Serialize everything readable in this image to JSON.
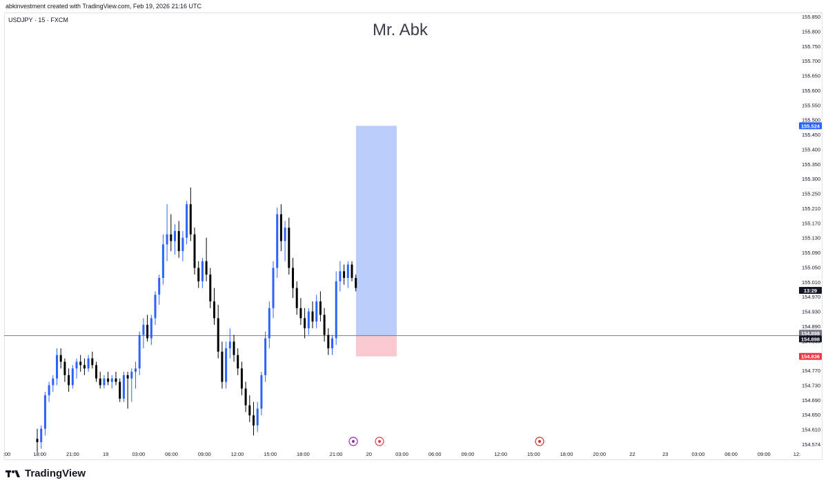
{
  "header": {
    "credit": "abkinvestment created with TradingView.com, Feb 19, 2026 21:16 UTC"
  },
  "symbol_line": "USDJPY · 15 · FXCM",
  "watermark": "Mr. Abk",
  "footer": {
    "brand": "TradingView"
  },
  "colors": {
    "up": "#2962ff",
    "down": "#000000",
    "target_zone": "#bbcdfb",
    "stop_zone": "#f9c9cf",
    "price_line": "#787b86",
    "badge_blue": "#2962ff",
    "badge_red": "#f23645",
    "badge_black": "#131722"
  },
  "chart_data": {
    "type": "candlestick",
    "ylim": [
      154.574,
      155.85
    ],
    "y_ticks": [
      "155.850",
      "155.800",
      "155.750",
      "155.700",
      "155.650",
      "155.600",
      "155.550",
      "155.500",
      "155.450",
      "155.400",
      "155.350",
      "155.300",
      "155.250",
      "155.210",
      "155.170",
      "155.130",
      "155.090",
      "155.050",
      "155.010",
      "154.970",
      "154.930",
      "154.890",
      "154.850",
      "154.810",
      "154.770",
      "154.730",
      "154.690",
      "154.650",
      "154.610",
      "154.574"
    ],
    "x_ticks": [
      ":00",
      "18:00",
      "21:00",
      "19",
      "03:00",
      "06:00",
      "09:00",
      "12:00",
      "15:00",
      "18:00",
      "21:00",
      "20",
      "03:00",
      "06:00",
      "09:00",
      "12:00",
      "15:00",
      "18:00",
      "20:00",
      "22",
      "23",
      "03:00",
      "06:00",
      "09:00",
      "12:"
    ],
    "price_badges": [
      {
        "label": "155.524",
        "value": 155.524,
        "color": "badge_blue"
      },
      {
        "label": "13:29",
        "value": 155.033,
        "color": "badge_black"
      },
      {
        "label": "154.898",
        "value": 154.905,
        "color": "price_line"
      },
      {
        "label": "154.898",
        "value": 154.888,
        "color": "badge_black"
      },
      {
        "label": "154.836",
        "value": 154.836,
        "color": "badge_red"
      }
    ],
    "current_price": 154.898,
    "position": {
      "type": "long",
      "entry": 154.898,
      "target": 155.524,
      "stop": 154.836
    },
    "candles": [
      [
        154.59,
        154.62,
        154.55,
        154.58
      ],
      [
        154.58,
        154.63,
        154.56,
        154.62
      ],
      [
        154.62,
        154.73,
        154.6,
        154.72
      ],
      [
        154.72,
        154.76,
        154.7,
        154.75
      ],
      [
        154.75,
        154.78,
        154.73,
        154.77
      ],
      [
        154.77,
        154.86,
        154.75,
        154.84
      ],
      [
        154.84,
        154.86,
        154.8,
        154.82
      ],
      [
        154.82,
        154.83,
        154.76,
        154.78
      ],
      [
        154.78,
        154.8,
        154.73,
        154.75
      ],
      [
        154.75,
        154.81,
        154.74,
        154.8
      ],
      [
        154.8,
        154.83,
        154.77,
        154.82
      ],
      [
        154.82,
        154.84,
        154.79,
        154.81
      ],
      [
        154.81,
        154.83,
        154.78,
        154.8
      ],
      [
        154.8,
        154.84,
        154.79,
        154.83
      ],
      [
        154.83,
        154.85,
        154.8,
        154.81
      ],
      [
        154.81,
        154.82,
        154.76,
        154.77
      ],
      [
        154.77,
        154.79,
        154.74,
        154.75
      ],
      [
        154.75,
        154.78,
        154.74,
        154.77
      ],
      [
        154.77,
        154.79,
        154.75,
        154.76
      ],
      [
        154.76,
        154.78,
        154.74,
        154.77
      ],
      [
        154.77,
        154.79,
        154.75,
        154.76
      ],
      [
        154.76,
        154.77,
        154.7,
        154.71
      ],
      [
        154.71,
        154.79,
        154.7,
        154.78
      ],
      [
        154.78,
        154.79,
        154.68,
        154.77
      ],
      [
        154.77,
        154.8,
        154.7,
        154.79
      ],
      [
        154.79,
        154.82,
        154.74,
        154.8
      ],
      [
        154.8,
        154.91,
        154.78,
        154.9
      ],
      [
        154.9,
        154.95,
        154.86,
        154.93
      ],
      [
        154.93,
        154.96,
        154.88,
        154.89
      ],
      [
        154.89,
        154.96,
        154.87,
        154.95
      ],
      [
        154.95,
        155.03,
        154.93,
        155.02
      ],
      [
        155.02,
        155.08,
        154.99,
        155.07
      ],
      [
        155.07,
        155.2,
        155.05,
        155.17
      ],
      [
        155.17,
        155.29,
        155.12,
        155.2
      ],
      [
        155.2,
        155.26,
        155.15,
        155.18
      ],
      [
        155.18,
        155.23,
        155.14,
        155.21
      ],
      [
        155.21,
        155.24,
        155.13,
        155.15
      ],
      [
        155.15,
        155.21,
        155.12,
        155.19
      ],
      [
        155.19,
        155.3,
        155.17,
        155.29
      ],
      [
        155.29,
        155.34,
        155.18,
        155.2
      ],
      [
        155.2,
        155.22,
        155.08,
        155.1
      ],
      [
        155.1,
        155.12,
        155.04,
        155.06
      ],
      [
        155.06,
        155.13,
        155.04,
        155.12
      ],
      [
        155.12,
        155.19,
        155.06,
        155.08
      ],
      [
        155.08,
        155.1,
        154.98,
        155.0
      ],
      [
        155.0,
        155.04,
        154.93,
        154.95
      ],
      [
        154.95,
        154.99,
        154.83,
        154.85
      ],
      [
        154.85,
        154.88,
        154.74,
        154.76
      ],
      [
        154.76,
        154.88,
        154.74,
        154.86
      ],
      [
        154.86,
        154.92,
        154.83,
        154.88
      ],
      [
        154.88,
        154.9,
        154.82,
        154.84
      ],
      [
        154.84,
        154.86,
        154.78,
        154.8
      ],
      [
        154.8,
        154.82,
        154.72,
        154.74
      ],
      [
        154.74,
        154.76,
        154.67,
        154.69
      ],
      [
        154.69,
        154.72,
        154.64,
        154.66
      ],
      [
        154.66,
        154.7,
        154.6,
        154.63
      ],
      [
        154.63,
        154.7,
        154.61,
        154.68
      ],
      [
        154.68,
        154.79,
        154.66,
        154.78
      ],
      [
        154.78,
        154.91,
        154.76,
        154.89
      ],
      [
        154.89,
        155.0,
        154.86,
        154.98
      ],
      [
        154.98,
        155.12,
        154.95,
        155.1
      ],
      [
        155.1,
        155.28,
        155.07,
        155.26
      ],
      [
        155.26,
        155.29,
        155.15,
        155.18
      ],
      [
        155.18,
        155.24,
        155.12,
        155.22
      ],
      [
        155.22,
        155.25,
        155.08,
        155.1
      ],
      [
        155.1,
        155.13,
        155.01,
        155.04
      ],
      [
        155.04,
        155.06,
        154.96,
        154.98
      ],
      [
        154.98,
        155.01,
        154.93,
        154.95
      ],
      [
        154.95,
        154.98,
        154.89,
        154.92
      ],
      [
        154.92,
        154.98,
        154.9,
        154.97
      ],
      [
        154.97,
        155.0,
        154.92,
        154.94
      ],
      [
        154.94,
        155.02,
        154.92,
        155.0
      ],
      [
        155.0,
        155.03,
        154.94,
        154.96
      ],
      [
        154.96,
        154.98,
        154.88,
        154.9
      ],
      [
        154.9,
        154.92,
        154.84,
        154.86
      ],
      [
        154.86,
        154.9,
        154.84,
        154.89
      ],
      [
        154.89,
        155.09,
        154.87,
        155.06
      ],
      [
        155.06,
        155.12,
        155.03,
        155.09
      ],
      [
        155.09,
        155.11,
        155.05,
        155.07
      ],
      [
        155.07,
        155.12,
        155.04,
        155.11
      ],
      [
        155.11,
        155.12,
        155.06,
        155.07
      ],
      [
        155.07,
        155.08,
        155.03,
        155.04
      ]
    ]
  }
}
